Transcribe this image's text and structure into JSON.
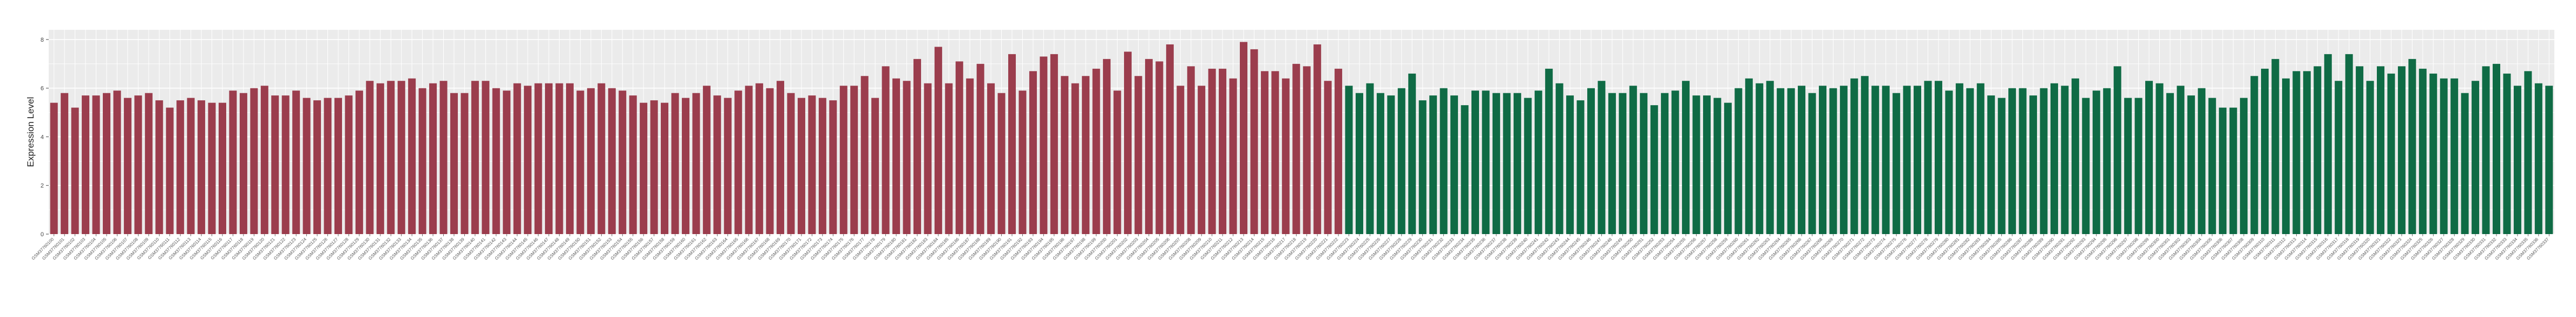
{
  "chart_data": {
    "type": "bar",
    "title": "",
    "xlabel": "",
    "ylabel": "Expression Level",
    "ylim": [
      0,
      8.4
    ],
    "yticks": [
      0,
      2,
      4,
      6,
      8
    ],
    "grid": true,
    "legend": "none",
    "colors": {
      "group_a": "#9b3d4d",
      "group_b": "#0f6b45",
      "panel_bg": "#ebebeb",
      "grid_line": "#ffffff"
    },
    "series": [
      {
        "group": "group_a",
        "values": [
          5.4,
          5.8,
          5.2,
          5.7,
          5.7,
          5.8,
          5.9,
          5.6,
          5.7,
          5.8,
          5.5,
          5.2,
          5.5,
          5.6,
          5.5,
          5.4,
          5.4,
          5.9,
          5.8,
          6.0,
          6.1,
          5.7,
          5.7,
          5.9,
          5.6,
          5.5,
          5.6,
          5.6,
          5.7,
          5.9,
          6.3,
          6.2,
          6.3,
          6.3,
          6.4,
          6.0,
          6.2,
          6.3,
          5.8,
          5.8,
          6.3,
          6.3,
          6.0,
          5.9,
          6.2,
          6.1,
          6.2,
          6.2,
          6.2,
          6.2,
          5.9,
          6.0,
          6.2,
          6.0,
          5.9,
          5.7,
          5.4,
          5.5,
          5.4,
          5.8,
          5.6,
          5.8,
          6.1,
          5.7,
          5.6,
          5.9,
          6.1,
          6.2,
          6.0,
          6.3,
          5.8,
          5.6,
          5.7,
          5.6,
          5.5,
          6.1,
          6.1,
          6.5,
          5.6,
          6.9,
          6.4,
          6.3,
          7.2,
          6.2,
          7.7,
          6.2,
          7.1,
          6.4,
          7.0,
          6.2,
          5.8,
          7.4,
          5.9,
          6.7,
          7.3,
          7.4,
          6.5,
          6.2,
          6.5,
          6.8,
          7.2,
          5.9,
          7.5,
          6.5,
          7.2,
          7.1,
          7.8,
          6.1,
          6.9,
          6.1,
          6.8,
          6.8,
          6.4,
          7.9,
          7.6,
          6.7,
          6.7,
          6.4,
          7.0,
          6.9,
          7.8,
          6.3,
          6.8
        ]
      },
      {
        "group": "group_b",
        "values": [
          6.1,
          5.8,
          6.2,
          5.8,
          5.7,
          6.0,
          6.6,
          5.5,
          5.7,
          6.0,
          5.7,
          5.3,
          5.9,
          5.9,
          5.8,
          5.8,
          5.8,
          5.6,
          5.9,
          6.8,
          6.2,
          5.7,
          5.5,
          6.0,
          6.3,
          5.8,
          5.8,
          6.1,
          5.8,
          5.3,
          5.8,
          5.9,
          6.3,
          5.7,
          5.7,
          5.6,
          5.4,
          6.0,
          6.4,
          6.2,
          6.3,
          6.0,
          6.0,
          6.1,
          5.8,
          6.1,
          6.0,
          6.1,
          6.4,
          6.5,
          6.1,
          6.1,
          5.8,
          6.1,
          6.1,
          6.3,
          6.3,
          5.9,
          6.2,
          6.0,
          6.2,
          5.7,
          5.6,
          6.0,
          6.0,
          5.7,
          6.0,
          6.2,
          6.1,
          6.4,
          5.6,
          5.9,
          6.0,
          6.9,
          5.6,
          5.6,
          6.3,
          6.2,
          5.8,
          6.1,
          5.7,
          6.0,
          5.6,
          5.2,
          5.2,
          5.6,
          6.5,
          6.8,
          7.2,
          6.4,
          6.7,
          6.7,
          6.9,
          7.4,
          6.3,
          7.4,
          6.9,
          6.3,
          6.9,
          6.6,
          6.9,
          7.2,
          6.8,
          6.6,
          6.4,
          6.4,
          5.8,
          6.3,
          6.9,
          7.0,
          6.6,
          6.1,
          6.7,
          6.2,
          6.1
        ]
      }
    ],
    "category_prefix": "GSM3776"
  }
}
